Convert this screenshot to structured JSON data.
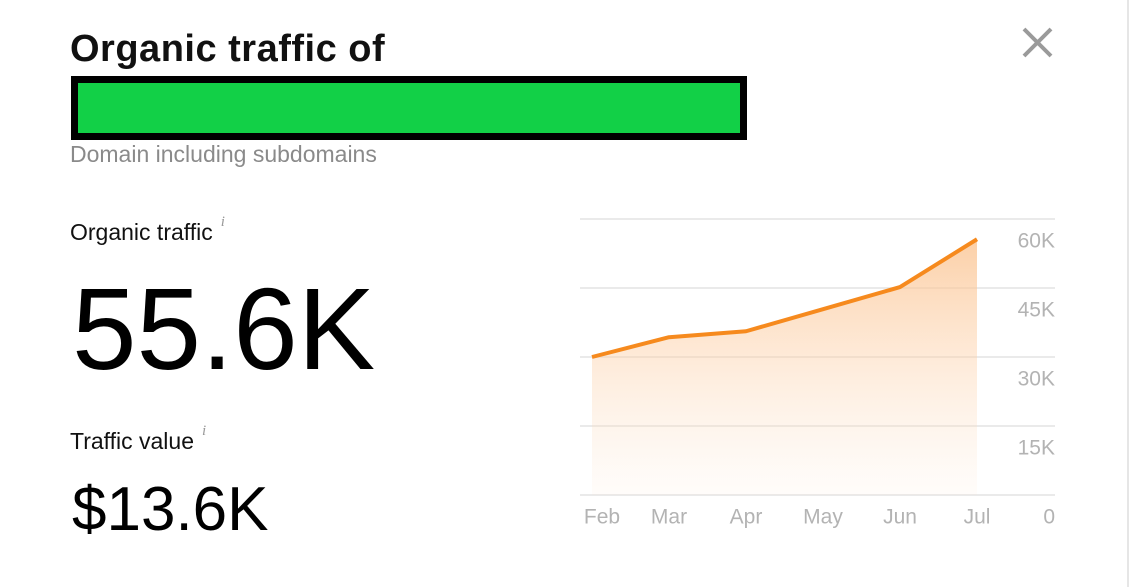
{
  "header": {
    "title": "Organic traffic of",
    "subtitle": "Domain including subdomains"
  },
  "metrics": [
    {
      "label": "Organic traffic",
      "info": "i",
      "value": "55.6K"
    },
    {
      "label": "Traffic value",
      "info": "i",
      "value": "$13.6K"
    }
  ],
  "chart_data": {
    "type": "area",
    "categories": [
      "Feb",
      "Mar",
      "Apr",
      "May",
      "Jun",
      "Jul"
    ],
    "values": [
      30000,
      34300,
      35600,
      40400,
      45200,
      55600
    ],
    "color": "#f68a1e",
    "ylim": [
      0,
      60000
    ],
    "yticks": [
      0,
      {
        "value": 15000,
        "label": "15K"
      },
      {
        "value": 30000,
        "label": "30K"
      },
      {
        "value": 45000,
        "label": "45K"
      },
      {
        "value": 60000,
        "label": "60K"
      }
    ],
    "grid": true
  }
}
